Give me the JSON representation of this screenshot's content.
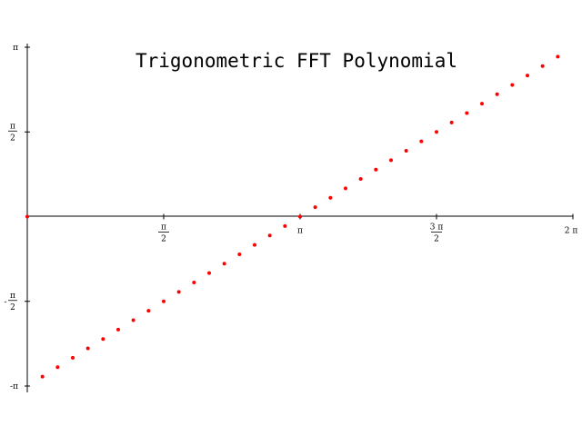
{
  "chart_data": {
    "type": "scatter",
    "title": "Trigonometric FFT Polynomial",
    "xlabel": "",
    "ylabel": "",
    "xlim": [
      0,
      6.2832
    ],
    "ylim": [
      -3.1416,
      3.1416
    ],
    "grid": false,
    "legend": "none",
    "marker_color": "#ff0000",
    "x_ticks": [
      {
        "value": 1.5708,
        "num": "π",
        "den": "2"
      },
      {
        "value": 3.1416,
        "text": "π"
      },
      {
        "value": 4.7124,
        "num": "3 π",
        "den": "2"
      },
      {
        "value": 6.2832,
        "text": "2 π"
      }
    ],
    "y_ticks": [
      {
        "value": 3.1416,
        "text": "π"
      },
      {
        "value": 1.5708,
        "sign": "",
        "num": "π",
        "den": "2"
      },
      {
        "value": -1.5708,
        "sign": "-",
        "num": "π",
        "den": "2"
      },
      {
        "value": -3.1416,
        "text": "-π"
      }
    ],
    "series": [
      {
        "x": [
          0.0,
          0.1745,
          0.3491,
          0.5236,
          0.6981,
          0.8727,
          1.0472,
          1.2217,
          1.3963,
          1.5708,
          1.7453,
          1.9199,
          2.0944,
          2.2689,
          2.4435,
          2.618,
          2.7925,
          2.9671,
          3.1416,
          3.3161,
          3.4907,
          3.6652,
          3.8397,
          4.0143,
          4.1888,
          4.3633,
          4.5379,
          4.7124,
          4.8869,
          5.0615,
          5.236,
          5.4105,
          5.5851,
          5.7596,
          5.9341,
          6.1087
        ],
        "y": [
          0.0,
          -2.9671,
          -2.7925,
          -2.618,
          -2.4435,
          -2.2689,
          -2.0944,
          -1.9199,
          -1.7453,
          -1.5708,
          -1.3963,
          -1.2217,
          -1.0472,
          -0.8727,
          -0.6981,
          -0.5236,
          -0.3491,
          -0.1745,
          0.0,
          0.1745,
          0.3491,
          0.5236,
          0.6981,
          0.8727,
          1.0472,
          1.2217,
          1.3963,
          1.5708,
          1.7453,
          1.9199,
          2.0944,
          2.2689,
          2.4435,
          2.618,
          2.7925,
          2.9671
        ]
      }
    ]
  }
}
